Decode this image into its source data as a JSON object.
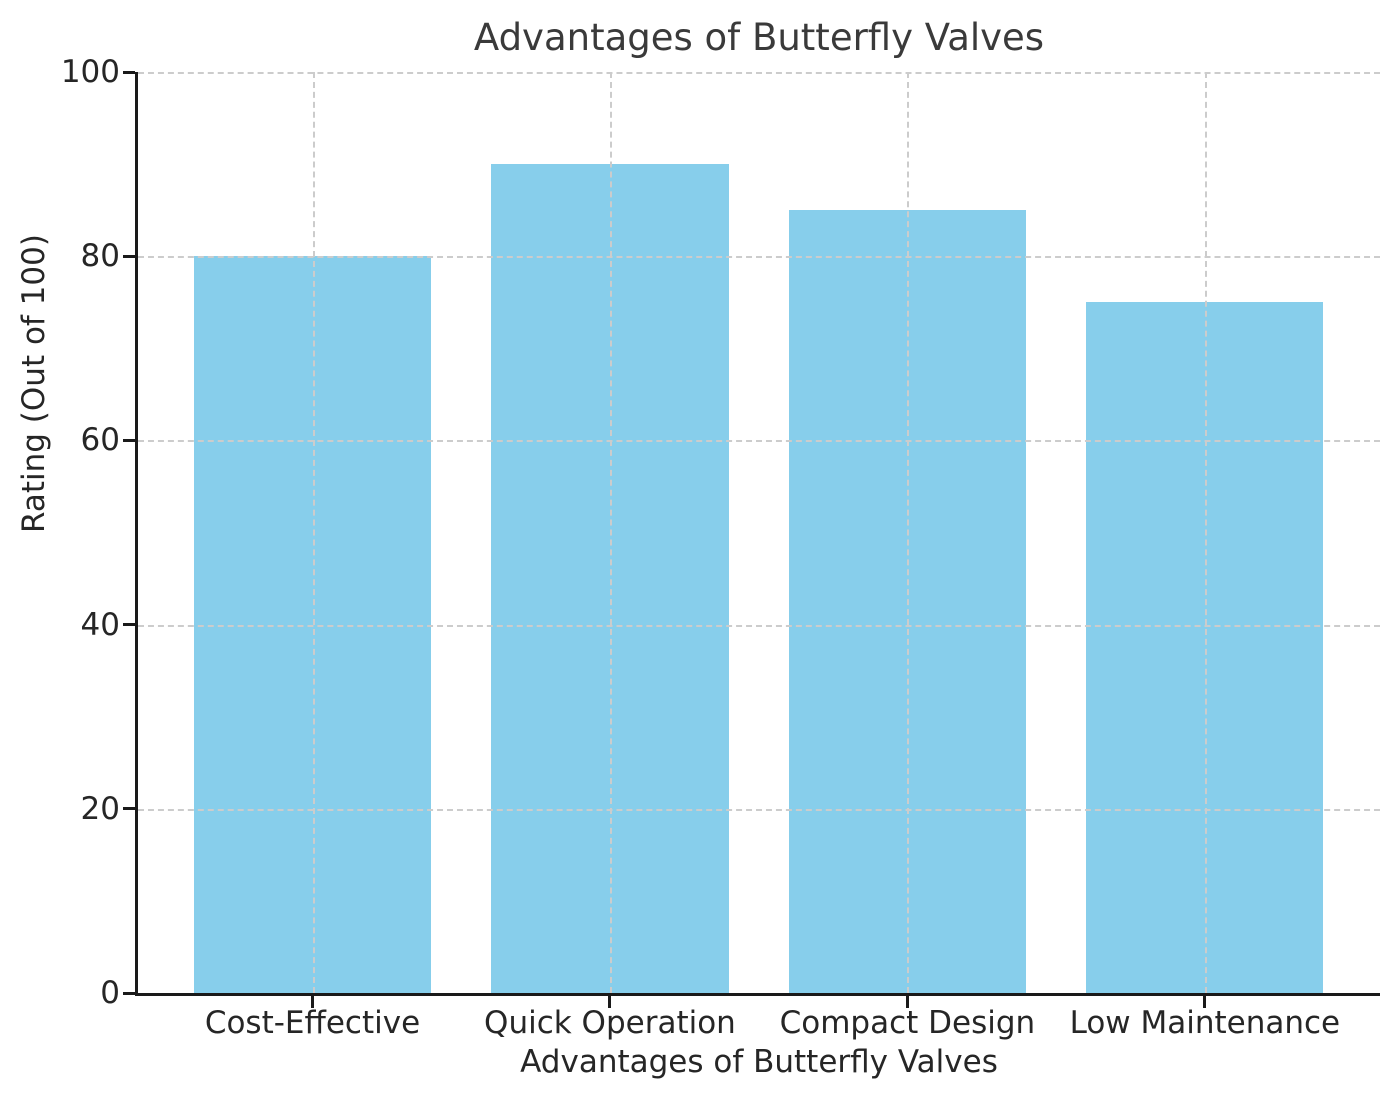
{
  "chart_data": {
    "type": "bar",
    "title": "Advantages of Butterfly Valves",
    "xlabel": "Advantages of Butterfly Valves",
    "ylabel": "Rating (Out of 100)",
    "categories": [
      "Cost-Effective",
      "Quick Operation",
      "Compact Design",
      "Low Maintenance"
    ],
    "values": [
      80,
      90,
      85,
      75
    ],
    "ylim": [
      0,
      100
    ],
    "yticks": [
      0,
      20,
      40,
      60,
      80,
      100
    ],
    "bar_color": "#87CEEB",
    "grid": "dashed-both-axes-above-bars",
    "legend": "none"
  },
  "colors": {
    "bar": "#87CEEB",
    "text": "#262626",
    "title_text": "#3a3a3a",
    "axis": "#1a1a1a",
    "grid": "#cccccc",
    "background": "#ffffff"
  }
}
